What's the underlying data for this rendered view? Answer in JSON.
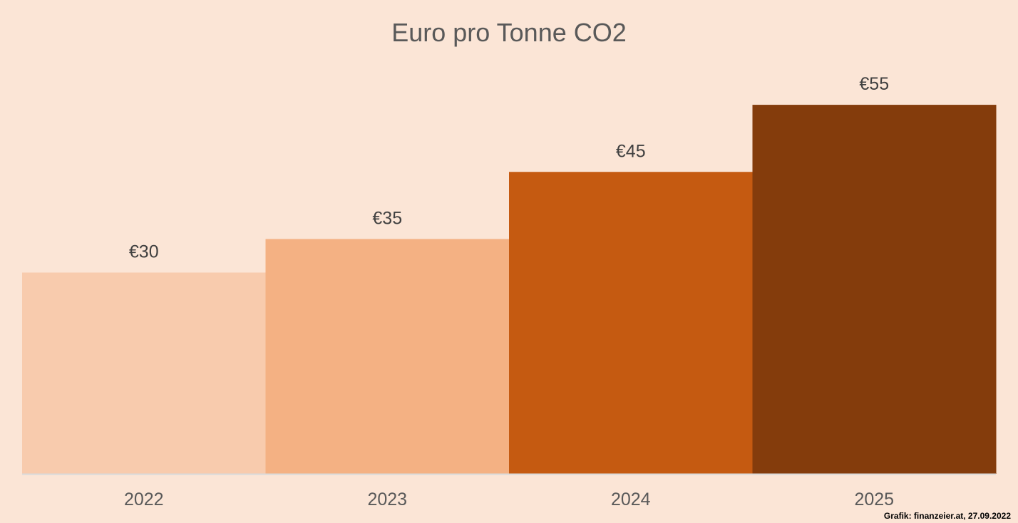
{
  "chart_data": {
    "type": "bar",
    "title": "Euro pro Tonne CO2",
    "categories": [
      "2022",
      "2023",
      "2024",
      "2025"
    ],
    "values": [
      30,
      35,
      45,
      55
    ],
    "data_labels": [
      "€30",
      "€35",
      "€45",
      "€55"
    ],
    "bar_colors": [
      "#f8cbad",
      "#f4b183",
      "#c55a11",
      "#843c0c"
    ],
    "xlabel": "",
    "ylabel": "",
    "ylim": [
      0,
      60
    ],
    "grid": false,
    "legend": "none",
    "background_color": "#fbe5d6",
    "axis_color": "#d9d9d9"
  },
  "footer": {
    "credit": "Grafik: finanzeier.at, 27.09.2022"
  }
}
